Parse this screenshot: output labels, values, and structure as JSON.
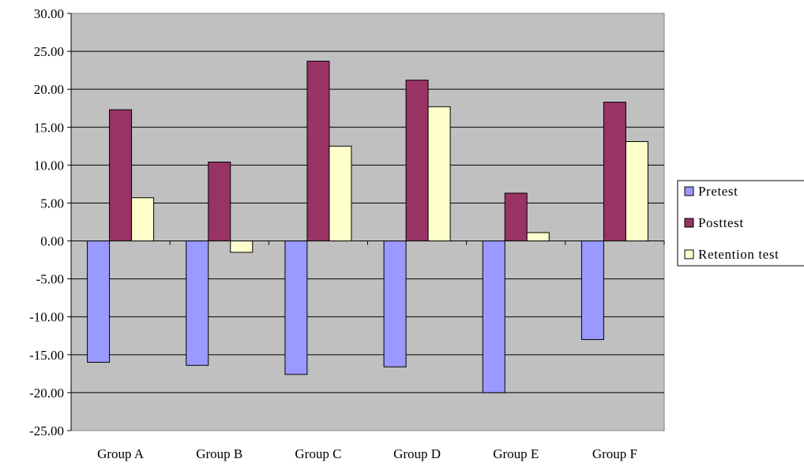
{
  "chart_data": {
    "type": "bar",
    "title": "",
    "xlabel": "",
    "ylabel": "",
    "categories": [
      "Group A",
      "Group B",
      "Group C",
      "Group D",
      "Group E",
      "Group F"
    ],
    "series": [
      {
        "name": "Pretest",
        "color": "#9999ff",
        "values": [
          -16.0,
          -16.4,
          -17.6,
          -16.6,
          -20.0,
          -13.0
        ]
      },
      {
        "name": "Posttest",
        "color": "#993366",
        "values": [
          17.3,
          10.4,
          23.7,
          21.2,
          6.3,
          18.3
        ]
      },
      {
        "name": "Retention test",
        "color": "#ffffcc",
        "values": [
          5.7,
          -1.5,
          12.5,
          17.7,
          1.1,
          13.1
        ]
      }
    ],
    "ylim": [
      -25,
      30
    ],
    "yticks": [
      30,
      25,
      20,
      15,
      10,
      5,
      0,
      -5,
      -10,
      -15,
      -20,
      -25
    ],
    "ytick_labels": [
      "30.00",
      "25.00",
      "20.00",
      "15.00",
      "10.00",
      "5.00",
      "0.00",
      "-5.00",
      "-10.00",
      "-15.00",
      "-20.00",
      "-25.00"
    ],
    "plot_background": "#c0c0c0",
    "grid": true,
    "legend_position": "right"
  }
}
